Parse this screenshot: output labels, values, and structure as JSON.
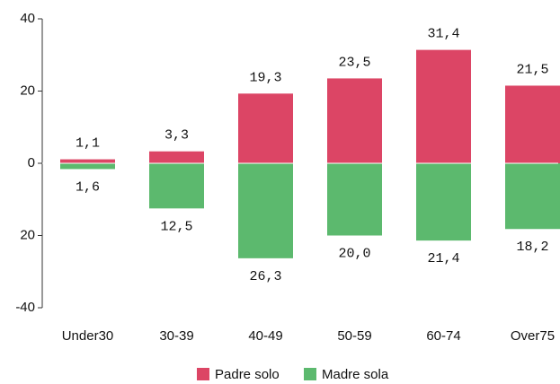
{
  "chart_data": {
    "type": "bar",
    "categories": [
      "Under30",
      "30-39",
      "40-49",
      "50-59",
      "60-74",
      "Over75"
    ],
    "series": [
      {
        "name": "Padre solo",
        "color": "#dc4565",
        "values": [
          1.1,
          3.3,
          19.3,
          23.5,
          31.4,
          21.5
        ],
        "value_labels": [
          "1,1",
          "3,3",
          "19,3",
          "23,5",
          "31,4",
          "21,5"
        ]
      },
      {
        "name": "Madre sola",
        "color": "#5cb96e",
        "values": [
          -1.6,
          -12.5,
          -26.3,
          -20.0,
          -21.4,
          -18.2
        ],
        "value_labels": [
          "1,6",
          "12,5",
          "26,3",
          "20,0",
          "21,4",
          "18,2"
        ]
      }
    ],
    "ylim": [
      -40,
      40
    ],
    "yticks": [
      40,
      20,
      0,
      {
        "value": -20,
        "label": "20"
      },
      -40
    ],
    "legend": "bottom"
  }
}
